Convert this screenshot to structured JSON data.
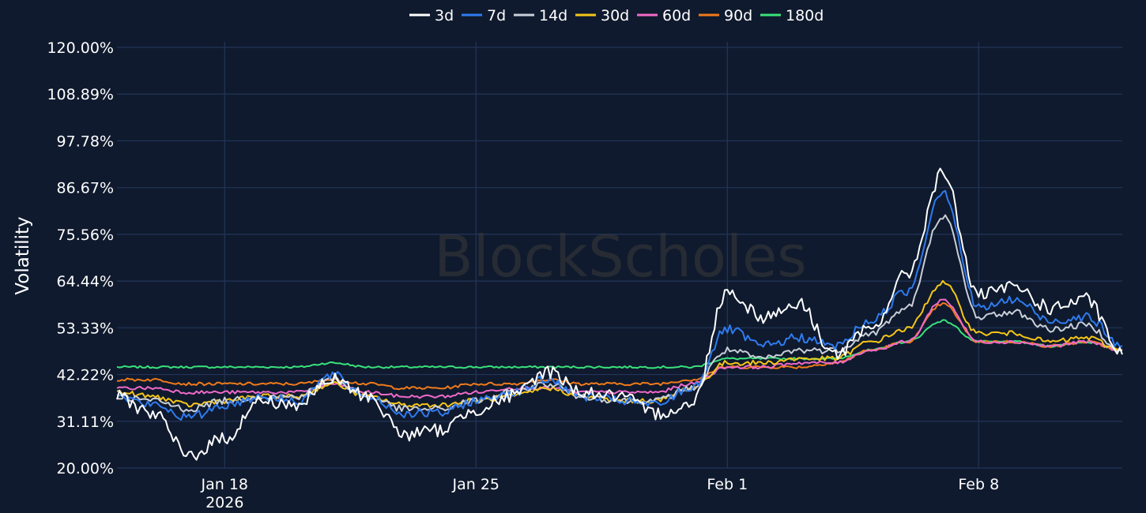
{
  "chart_data": {
    "type": "line",
    "watermark": "BlockScholes",
    "ylabel": "Volatility",
    "ylim": [
      20,
      120
    ],
    "y_ticks": [
      "120.00%",
      "108.89%",
      "97.78%",
      "86.67%",
      "75.56%",
      "64.44%",
      "53.33%",
      "42.22%",
      "31.11%",
      "20.00%"
    ],
    "x_range": [
      "2026-01-15",
      "2026-02-12"
    ],
    "x_ticks": [
      {
        "date": "2026-01-18",
        "label": "Jan 18",
        "sub": "2026"
      },
      {
        "date": "2026-01-25",
        "label": "Jan 25",
        "sub": ""
      },
      {
        "date": "2026-02-01",
        "label": "Feb 1",
        "sub": ""
      },
      {
        "date": "2026-02-08",
        "label": "Feb 8",
        "sub": ""
      }
    ],
    "grid": true,
    "legend_position": "top-center",
    "x": [
      "2026-01-15",
      "2026-01-16",
      "2026-01-17",
      "2026-01-18",
      "2026-01-19",
      "2026-01-20",
      "2026-01-21",
      "2026-01-22",
      "2026-01-23",
      "2026-01-24",
      "2026-01-25",
      "2026-01-26",
      "2026-01-27",
      "2026-01-28",
      "2026-01-29",
      "2026-01-30",
      "2026-01-31",
      "2026-02-01",
      "2026-02-02",
      "2026-02-03",
      "2026-02-04",
      "2026-02-05",
      "2026-02-06",
      "2026-02-07",
      "2026-02-08",
      "2026-02-09",
      "2026-02-10",
      "2026-02-11",
      "2026-02-12"
    ],
    "series": [
      {
        "name": "3d",
        "color": "#ffffff",
        "values": [
          37,
          33,
          23,
          27,
          36,
          35,
          41,
          37,
          28,
          29,
          34,
          37,
          43,
          38,
          37,
          33,
          35,
          62,
          56,
          59,
          47,
          53,
          66,
          90,
          61,
          63,
          58,
          60,
          47
        ]
      },
      {
        "name": "7d",
        "color": "#2f7bef",
        "values": [
          37,
          35,
          32,
          35,
          37,
          36,
          42,
          37,
          33,
          33,
          36,
          38,
          41,
          37,
          36,
          35,
          39,
          53,
          49,
          51,
          49,
          55,
          62,
          86,
          58,
          60,
          55,
          56,
          49
        ]
      },
      {
        "name": "14d",
        "color": "#c9cfd8",
        "values": [
          37,
          36,
          34,
          36,
          37,
          37,
          41,
          37,
          34,
          34,
          36,
          38,
          40,
          37,
          36,
          36,
          39,
          48,
          46,
          48,
          48,
          52,
          58,
          80,
          56,
          57,
          53,
          54,
          48
        ]
      },
      {
        "name": "30d",
        "color": "#f5c518",
        "values": [
          38,
          37,
          35,
          36,
          37,
          37,
          40,
          37,
          35,
          35,
          36,
          37,
          39,
          37,
          36,
          36,
          39,
          45,
          45,
          46,
          46,
          50,
          53,
          64,
          52,
          52,
          50,
          51,
          48
        ]
      },
      {
        "name": "60d",
        "color": "#f06ac9",
        "values": [
          39,
          39,
          38,
          38,
          38,
          38,
          40,
          38,
          37,
          37,
          38,
          39,
          39,
          38,
          38,
          38,
          40,
          44,
          44,
          45,
          45,
          48,
          50,
          60,
          50,
          50,
          49,
          50,
          48
        ]
      },
      {
        "name": "90d",
        "color": "#f07a1a",
        "values": [
          41,
          41,
          40,
          40,
          40,
          40,
          41,
          40,
          39,
          39,
          40,
          40,
          41,
          40,
          40,
          40,
          41,
          44,
          44,
          44,
          45,
          48,
          50,
          59,
          50,
          50,
          49,
          50,
          48
        ]
      },
      {
        "name": "180d",
        "color": "#39e27a",
        "values": [
          44,
          44,
          44,
          44,
          44,
          44,
          45,
          44,
          44,
          44,
          44,
          44,
          44,
          44,
          44,
          44,
          44,
          46,
          46,
          46,
          46,
          48,
          50,
          55,
          50,
          50,
          49,
          50,
          48
        ]
      }
    ]
  }
}
